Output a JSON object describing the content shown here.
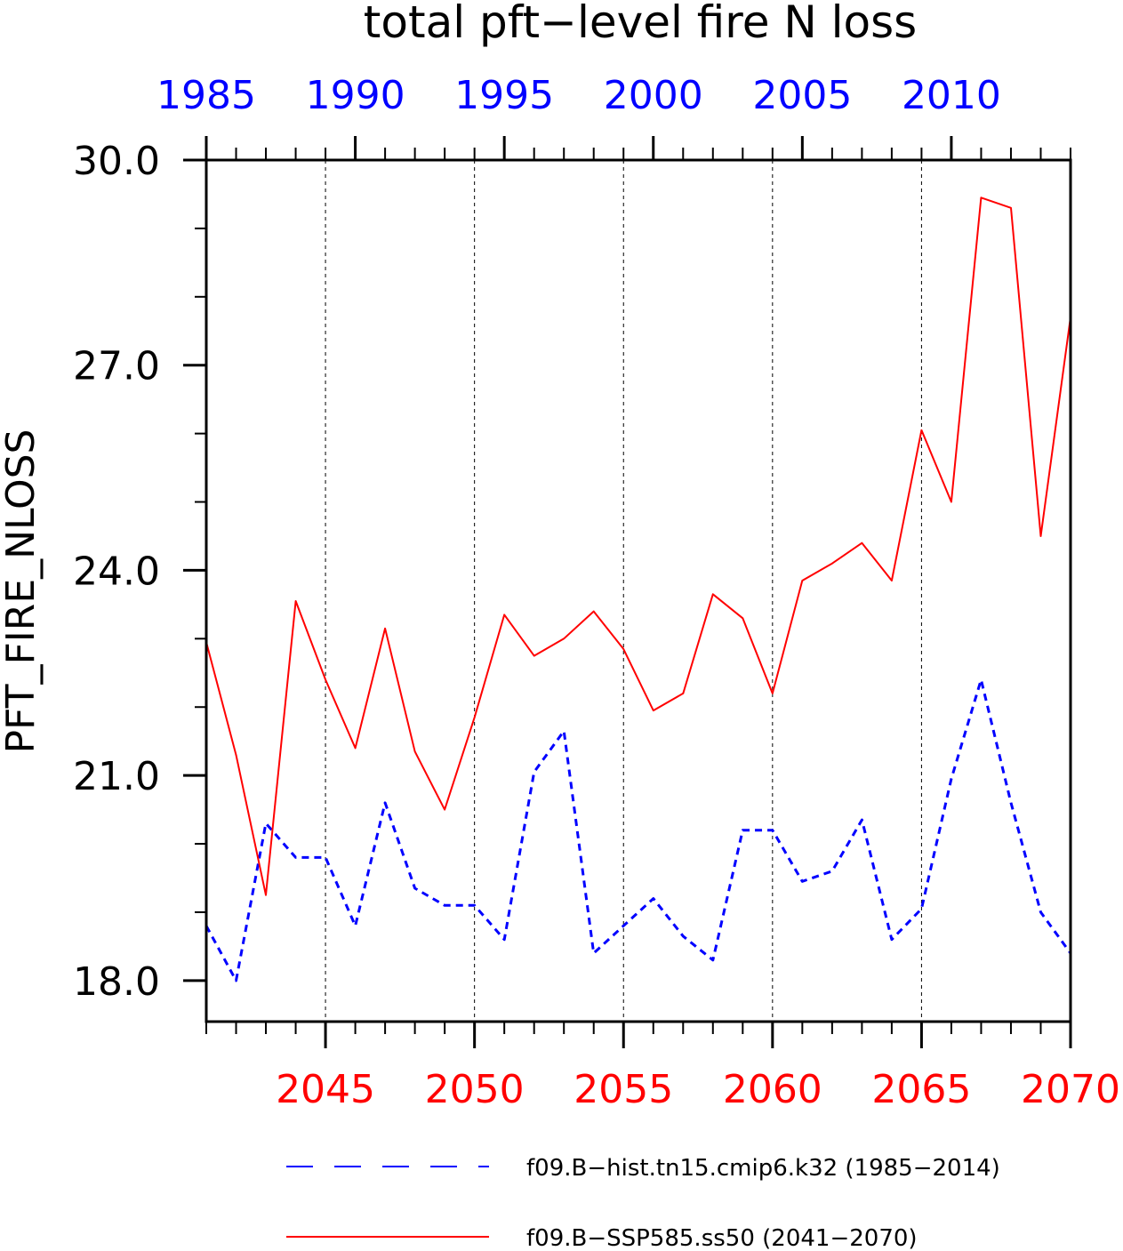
{
  "chart_data": {
    "type": "line",
    "title": "total pft−level fire N loss",
    "ylabel": "PFT_FIRE_NLOSS",
    "ylim": [
      17.4,
      30.0
    ],
    "y_ticks": [
      "18.0",
      "21.0",
      "24.0",
      "27.0",
      "30.0"
    ],
    "x_bottom": {
      "range": [
        2041,
        2070
      ],
      "tick_labels": [
        "2045",
        "2050",
        "2055",
        "2060",
        "2065",
        "2070"
      ],
      "color": "#ff0000"
    },
    "x_top": {
      "range": [
        1985,
        2014
      ],
      "tick_labels": [
        "1985",
        "1990",
        "1995",
        "2000",
        "2005",
        "2010"
      ],
      "color": "#0000ff"
    },
    "grid": "vertical dashed at major bottom ticks",
    "legend_position": "bottom",
    "series": [
      {
        "name": "f09.B−hist.tn15.cmip6.k32 (1985−2014)",
        "color": "#0000ff",
        "style": "dashed",
        "axis": "top",
        "x": [
          1985,
          1986,
          1987,
          1988,
          1989,
          1990,
          1991,
          1992,
          1993,
          1994,
          1995,
          1996,
          1997,
          1998,
          1999,
          2000,
          2001,
          2002,
          2003,
          2004,
          2005,
          2006,
          2007,
          2008,
          2009,
          2010,
          2011,
          2012,
          2013,
          2014
        ],
        "values": [
          18.8,
          18.0,
          20.3,
          19.8,
          19.8,
          18.8,
          20.6,
          19.35,
          19.1,
          19.1,
          18.6,
          21.05,
          21.65,
          18.4,
          18.8,
          19.2,
          18.65,
          18.3,
          20.2,
          20.2,
          19.45,
          19.6,
          20.35,
          18.6,
          19.05,
          20.95,
          22.4,
          20.6,
          19.0,
          18.4
        ]
      },
      {
        "name": "f09.B−SSP585.ss50 (2041−2070)",
        "color": "#ff0000",
        "style": "solid",
        "axis": "bottom",
        "x": [
          2041,
          2042,
          2043,
          2044,
          2045,
          2046,
          2047,
          2048,
          2049,
          2050,
          2051,
          2052,
          2053,
          2054,
          2055,
          2056,
          2057,
          2058,
          2059,
          2060,
          2061,
          2062,
          2063,
          2064,
          2065,
          2066,
          2067,
          2068,
          2069,
          2070
        ],
        "values": [
          22.95,
          21.3,
          19.25,
          23.55,
          22.4,
          21.4,
          23.15,
          21.35,
          20.5,
          21.85,
          23.35,
          22.75,
          23.0,
          23.4,
          22.85,
          21.95,
          22.2,
          23.65,
          23.3,
          22.2,
          23.85,
          24.1,
          24.4,
          23.85,
          26.05,
          25.0,
          29.45,
          29.3,
          24.5,
          27.7
        ]
      }
    ]
  }
}
